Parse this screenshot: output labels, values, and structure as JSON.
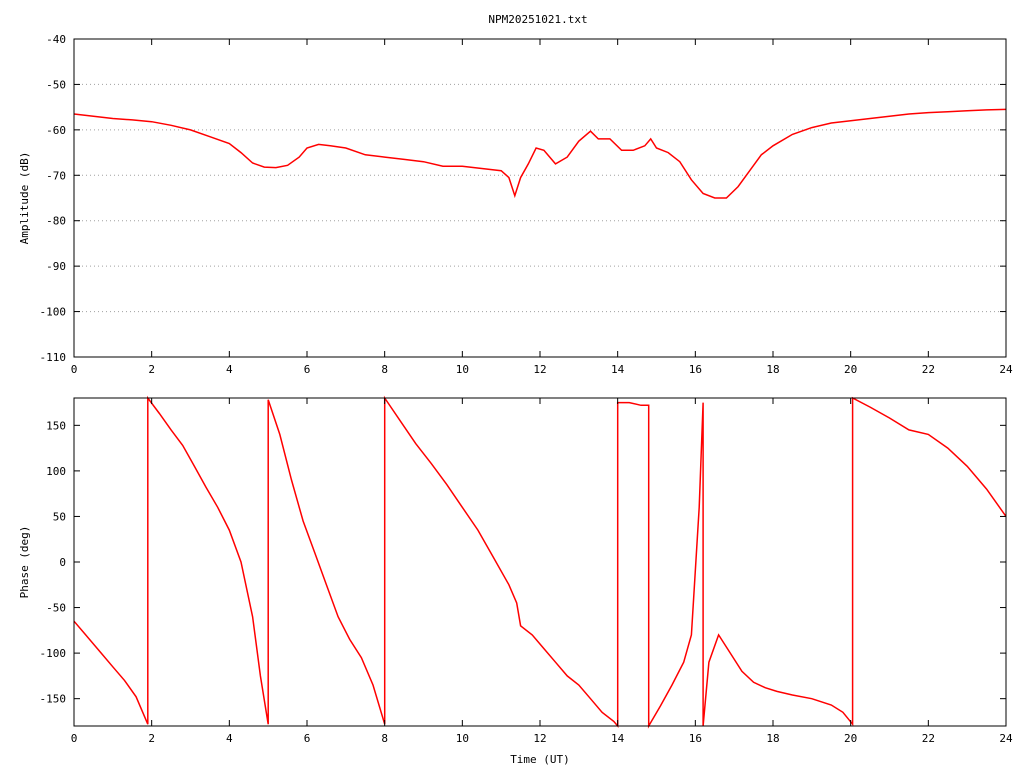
{
  "title": "NPM20251021.txt",
  "colors": {
    "trace": "#ff0000",
    "axis": "#000000",
    "grid": "#a0a0a0"
  },
  "chart_data": [
    {
      "type": "line",
      "title": "NPM20251021.txt",
      "xlabel": "",
      "ylabel": "Amplitude (dB)",
      "xlim": [
        0,
        24
      ],
      "ylim": [
        -110,
        -40
      ],
      "xticks": [
        0,
        2,
        4,
        6,
        8,
        10,
        12,
        14,
        16,
        18,
        20,
        22,
        24
      ],
      "yticks": [
        -110,
        -100,
        -90,
        -80,
        -70,
        -60,
        -50,
        -40
      ],
      "xtick_labels": [
        "0",
        "2",
        "4",
        "6",
        "8",
        "10",
        "12",
        "14",
        "16",
        "18",
        "20",
        "22",
        "24"
      ],
      "ytick_labels": [
        "-110",
        "-100",
        "-90",
        "-80",
        "-70",
        "-60",
        "-50",
        "-40"
      ],
      "grid": true,
      "series": [
        {
          "x": [
            0,
            0.5,
            1,
            1.5,
            2,
            2.5,
            3,
            3.5,
            4,
            4.3,
            4.6,
            4.9,
            5.2,
            5.5,
            5.8,
            6.0,
            6.3,
            6.6,
            7.0,
            7.5,
            8.0,
            8.5,
            9.0,
            9.5,
            10.0,
            10.5,
            11.0,
            11.2,
            11.35,
            11.5,
            11.7,
            11.9,
            12.1,
            12.4,
            12.7,
            13.0,
            13.3,
            13.5,
            13.8,
            14.1,
            14.4,
            14.7,
            14.85,
            15.0,
            15.3,
            15.6,
            15.9,
            16.2,
            16.5,
            16.8,
            17.1,
            17.4,
            17.7,
            18.0,
            18.5,
            19.0,
            19.5,
            20.0,
            20.5,
            21.0,
            21.5,
            22.0,
            22.5,
            23.0,
            23.5,
            24.0
          ],
          "y": [
            -56.5,
            -57,
            -57.5,
            -57.8,
            -58.2,
            -59,
            -60,
            -61.5,
            -63,
            -65,
            -67.3,
            -68.2,
            -68.3,
            -67.8,
            -66,
            -64,
            -63.2,
            -63.5,
            -64,
            -65.5,
            -66,
            -66.5,
            -67,
            -68,
            -68,
            -68.5,
            -69,
            -70.5,
            -74.5,
            -70.5,
            -67.5,
            -64,
            -64.5,
            -67.5,
            -66,
            -62.5,
            -60.3,
            -62,
            -62,
            -64.5,
            -64.5,
            -63.5,
            -62,
            -64,
            -65,
            -67,
            -71,
            -74,
            -75,
            -75,
            -72.5,
            -69,
            -65.5,
            -63.5,
            -61,
            -59.5,
            -58.5,
            -58,
            -57.5,
            -57,
            -56.5,
            -56.2,
            -56,
            -55.8,
            -55.6,
            -55.5
          ]
        }
      ]
    },
    {
      "type": "line",
      "title": "",
      "xlabel": "Time (UT)",
      "ylabel": "Phase (deg)",
      "xlim": [
        0,
        24
      ],
      "ylim": [
        -180,
        180
      ],
      "xticks": [
        0,
        2,
        4,
        6,
        8,
        10,
        12,
        14,
        16,
        18,
        20,
        22,
        24
      ],
      "yticks": [
        -150,
        -100,
        -50,
        0,
        50,
        100,
        150
      ],
      "xtick_labels": [
        "0",
        "2",
        "4",
        "6",
        "8",
        "10",
        "12",
        "14",
        "16",
        "18",
        "20",
        "22",
        "24"
      ],
      "ytick_labels": [
        "-150",
        "-100",
        "-50",
        "0",
        "50",
        "100",
        "150"
      ],
      "grid": false,
      "series": [
        {
          "x": [
            0,
            0.3,
            0.7,
            1.0,
            1.3,
            1.6,
            1.9,
            1.9,
            2.2,
            2.5,
            2.8,
            3.1,
            3.4,
            3.7,
            4.0,
            4.3,
            4.6,
            4.8,
            5.0,
            5.0,
            5.3,
            5.6,
            5.9,
            6.2,
            6.5,
            6.8,
            7.1,
            7.4,
            7.7,
            8.0,
            8.0,
            8.4,
            8.8,
            9.2,
            9.6,
            10.0,
            10.4,
            10.8,
            11.2,
            11.4,
            11.5,
            11.8,
            12.1,
            12.4,
            12.7,
            13.0,
            13.3,
            13.6,
            13.9,
            14.0,
            14.0,
            14.3,
            14.6,
            14.8,
            14.8,
            15.1,
            15.4,
            15.7,
            15.9,
            16.1,
            16.2,
            16.2,
            16.35,
            16.6,
            16.9,
            17.2,
            17.5,
            17.8,
            18.1,
            18.5,
            19.0,
            19.5,
            19.8,
            20.05,
            20.05,
            20.5,
            21.0,
            21.5,
            22.0,
            22.5,
            23.0,
            23.5,
            24.0
          ],
          "y": [
            -65,
            -80,
            -100,
            -115,
            -130,
            -148,
            -178,
            180,
            163,
            145,
            128,
            105,
            82,
            60,
            35,
            0,
            -60,
            -125,
            -178,
            178,
            140,
            90,
            45,
            10,
            -25,
            -60,
            -85,
            -105,
            -135,
            -178,
            180,
            155,
            130,
            108,
            85,
            60,
            35,
            5,
            -25,
            -45,
            -70,
            -80,
            -95,
            -110,
            -125,
            -135,
            -150,
            -165,
            -175,
            -180,
            175,
            175,
            172,
            172,
            -180,
            -158,
            -135,
            -110,
            -80,
            60,
            175,
            -180,
            -110,
            -80,
            -100,
            -120,
            -132,
            -138,
            -142,
            -146,
            -150,
            -157,
            -165,
            -178,
            180,
            170,
            158,
            145,
            140,
            125,
            105,
            80,
            50
          ]
        }
      ]
    }
  ]
}
